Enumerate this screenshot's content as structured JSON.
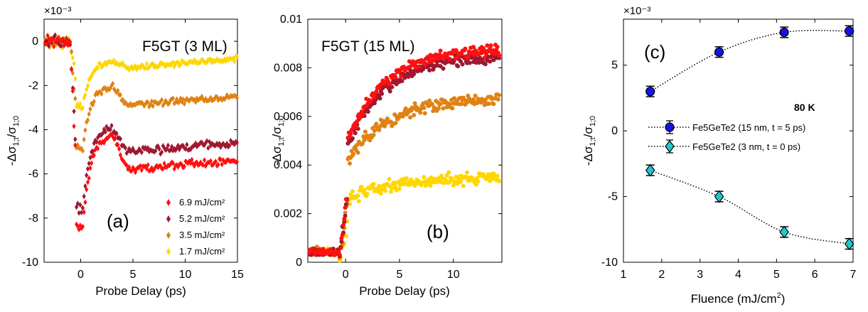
{
  "chart_data": [
    {
      "type": "scatter",
      "panel_label": "(a)",
      "title": "F5GT (3 ML)",
      "xlabel": "Probe Delay (ps)",
      "ylabel": "-Δσ1;t/σ1;0",
      "y_exponent": "×10⁻³",
      "xlim": [
        -3.5,
        15
      ],
      "ylim": [
        -10,
        1
      ],
      "xticks": [
        0,
        5,
        10,
        15
      ],
      "yticks": [
        -10,
        -8,
        -6,
        -4,
        -2,
        0
      ],
      "marker": "diamond",
      "legend_location": "bottom-right",
      "series": [
        {
          "name": "6.9 mJ/cm²",
          "color": "#ff1010",
          "pre": 0.0,
          "dip": -8.4,
          "plateau": -5.8,
          "peak": -4.2,
          "noise": 0.22
        },
        {
          "name": "5.2 mJ/cm²",
          "color": "#a01830",
          "pre": 0.0,
          "dip": -7.6,
          "plateau": -5.0,
          "peak": -3.9,
          "noise": 0.22
        },
        {
          "name": "3.5 mJ/cm²",
          "color": "#e08214",
          "pre": 0.0,
          "dip": -4.9,
          "plateau": -2.9,
          "peak": -2.0,
          "noise": 0.18
        },
        {
          "name": "1.7 mJ/cm²",
          "color": "#ffd700",
          "pre": 0.0,
          "dip": -3.0,
          "plateau": -1.2,
          "peak": -0.9,
          "noise": 0.15
        }
      ]
    },
    {
      "type": "scatter",
      "panel_label": "(b)",
      "title": "F5GT (15 ML)",
      "xlabel": "Probe Delay (ps)",
      "ylabel": "-Δσ1;t/σ1;0",
      "xlim": [
        -3.5,
        14.5
      ],
      "ylim": [
        0,
        0.01
      ],
      "xticks": [
        0,
        5,
        10
      ],
      "yticks": [
        "0",
        "0.002",
        "0.004",
        "0.006",
        "0.008",
        "0.01"
      ],
      "marker": "circle",
      "series": [
        {
          "name": "6.9 mJ/cm²",
          "color": "#ff1010",
          "jump": 0.005,
          "final": 0.0088,
          "tau": 3.5,
          "noise": 0.0003
        },
        {
          "name": "5.2 mJ/cm²",
          "color": "#a01830",
          "jump": 0.0048,
          "final": 0.0085,
          "tau": 3.5,
          "noise": 0.0003
        },
        {
          "name": "3.5 mJ/cm²",
          "color": "#e08214",
          "jump": 0.0042,
          "final": 0.0068,
          "tau": 4.0,
          "noise": 0.0003
        },
        {
          "name": "1.7 mJ/cm²",
          "color": "#ffd700",
          "jump": 0.0026,
          "final": 0.0035,
          "tau": 4.0,
          "noise": 0.0003
        }
      ]
    },
    {
      "type": "scatter",
      "panel_label": "(c)",
      "xlabel": "Fluence (mJ/cm²)",
      "ylabel": "-Δσ1;t/σ1;0",
      "y_exponent": "×10⁻³",
      "annotation": "80 K",
      "xlim": [
        1,
        7
      ],
      "ylim": [
        -10,
        8.5
      ],
      "xticks": [
        1,
        2,
        3,
        4,
        5,
        6,
        7
      ],
      "yticks": [
        -10,
        -5,
        0,
        5
      ],
      "legend_location": "center-left",
      "series": [
        {
          "name": "Fe5GeTe2 (15 nm, t = 5 ps)",
          "color": "#1414e6",
          "marker": "circle",
          "x": [
            1.7,
            3.5,
            5.2,
            6.9
          ],
          "y": [
            3.0,
            6.0,
            7.5,
            7.6
          ],
          "err": [
            0.4,
            0.4,
            0.4,
            0.4
          ]
        },
        {
          "name": "Fe5GeTe2 (3 nm, t = 0 ps)",
          "color": "#1ec8d2",
          "marker": "diamond",
          "x": [
            1.7,
            3.5,
            5.2,
            6.9
          ],
          "y": [
            -3.0,
            -5.0,
            -7.7,
            -8.6
          ],
          "err": [
            0.4,
            0.4,
            0.4,
            0.4
          ]
        }
      ]
    }
  ]
}
